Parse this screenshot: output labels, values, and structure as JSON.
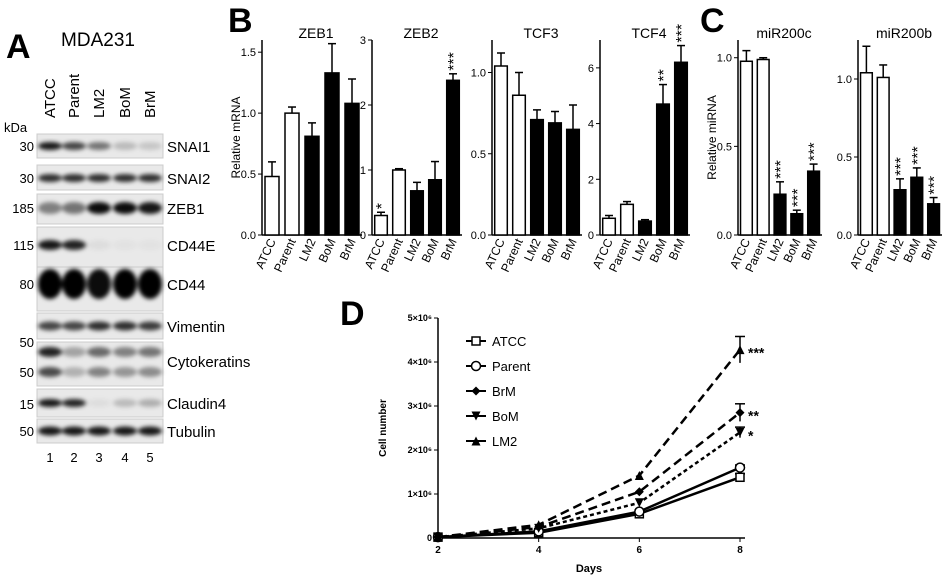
{
  "panel_labels": [
    "A",
    "B",
    "C",
    "D"
  ],
  "blot": {
    "cell_line": "MDA231",
    "kda_header": "kDa",
    "lanes": [
      "ATCC",
      "Parent",
      "LM2",
      "BoM",
      "BrM"
    ],
    "lane_numbers": [
      "1",
      "2",
      "3",
      "4",
      "5"
    ],
    "rows": [
      {
        "label": "SNAI1",
        "kda": [
          "30"
        ]
      },
      {
        "label": "SNAI2",
        "kda": [
          "30"
        ]
      },
      {
        "label": "ZEB1",
        "kda": [
          "185"
        ]
      },
      {
        "label": "CD44E",
        "kda": [
          "115"
        ]
      },
      {
        "label": "CD44",
        "kda": [
          "80"
        ]
      },
      {
        "label": "Vimentin",
        "kda": []
      },
      {
        "label": "Cytokeratins",
        "kda": [
          "50",
          "50"
        ]
      },
      {
        "label": "Claudin4",
        "kda": [
          "15"
        ]
      },
      {
        "label": "Tubulin",
        "kda": [
          "50"
        ]
      }
    ]
  },
  "chart_data": [
    {
      "type": "bar",
      "title": "ZEB1",
      "ylabel": "Relative mRNA",
      "categories": [
        "ATCC",
        "Parent",
        "LM2",
        "BoM",
        "BrM"
      ],
      "values": [
        0.48,
        1.0,
        0.81,
        1.33,
        1.08
      ],
      "errors": [
        0.12,
        0.05,
        0.11,
        0.24,
        0.2
      ],
      "colors": [
        "#ffffff",
        "#ffffff",
        "#000000",
        "#000000",
        "#000000"
      ],
      "annotations": [
        null,
        null,
        null,
        null,
        null
      ],
      "ylim": [
        0,
        1.6
      ],
      "yticks": [
        {
          "value": 0,
          "label": "0.0"
        },
        {
          "value": 0.5,
          "label": "0.5"
        },
        {
          "value": 1,
          "label": "1.0"
        },
        {
          "value": 1.5,
          "label": "1.5"
        }
      ]
    },
    {
      "type": "bar",
      "title": "ZEB2",
      "categories": [
        "ATCC",
        "Parent",
        "LM2",
        "BoM",
        "BrM"
      ],
      "values": [
        0.3,
        1.0,
        0.68,
        0.85,
        2.38
      ],
      "errors": [
        0.05,
        0.02,
        0.13,
        0.28,
        0.1
      ],
      "colors": [
        "#ffffff",
        "#ffffff",
        "#000000",
        "#000000",
        "#000000"
      ],
      "annotations": [
        "*",
        null,
        null,
        null,
        "***"
      ],
      "ylim": [
        0,
        3
      ],
      "yticks": [
        0,
        1,
        2,
        3
      ]
    },
    {
      "type": "bar",
      "title": "TCF3",
      "categories": [
        "ATCC",
        "Parent",
        "LM2",
        "BoM",
        "BrM"
      ],
      "values": [
        1.04,
        0.86,
        0.71,
        0.69,
        0.65
      ],
      "errors": [
        0.08,
        0.14,
        0.06,
        0.07,
        0.15
      ],
      "colors": [
        "#ffffff",
        "#ffffff",
        "#000000",
        "#000000",
        "#000000"
      ],
      "annotations": [
        null,
        null,
        null,
        null,
        null
      ],
      "ylim": [
        0,
        1.2
      ],
      "yticks": [
        {
          "value": 0,
          "label": "0.0"
        },
        {
          "value": 0.5,
          "label": "0.5"
        },
        {
          "value": 1,
          "label": "1.0"
        }
      ]
    },
    {
      "type": "bar",
      "title": "TCF4",
      "categories": [
        "ATCC",
        "Parent",
        "LM2",
        "BoM",
        "BrM"
      ],
      "values": [
        0.6,
        1.1,
        0.5,
        4.7,
        6.2
      ],
      "errors": [
        0.1,
        0.1,
        0.05,
        0.7,
        0.6
      ],
      "colors": [
        "#ffffff",
        "#ffffff",
        "#000000",
        "#000000",
        "#000000"
      ],
      "annotations": [
        null,
        null,
        null,
        "**",
        "***"
      ],
      "ylim": [
        0,
        7
      ],
      "yticks": [
        0,
        2,
        4,
        6
      ]
    },
    {
      "type": "bar",
      "title": "miR200c",
      "ylabel": "Relative miRNA",
      "categories": [
        "ATCC",
        "Parent",
        "LM2",
        "BoM",
        "BrM"
      ],
      "values": [
        0.98,
        0.99,
        0.23,
        0.12,
        0.36
      ],
      "errors": [
        0.06,
        0.01,
        0.07,
        0.02,
        0.04
      ],
      "colors": [
        "#ffffff",
        "#ffffff",
        "#000000",
        "#000000",
        "#000000"
      ],
      "annotations": [
        null,
        null,
        "***",
        "***",
        "***"
      ],
      "ylim": [
        0,
        1.1
      ],
      "yticks": [
        {
          "value": 0,
          "label": "0.0"
        },
        {
          "value": 0.5,
          "label": "0.5"
        },
        {
          "value": 1,
          "label": "1.0"
        }
      ]
    },
    {
      "type": "bar",
      "title": "miR200b",
      "categories": [
        "ATCC",
        "Parent",
        "LM2",
        "BoM",
        "BrM"
      ],
      "values": [
        1.04,
        1.01,
        0.29,
        0.37,
        0.2
      ],
      "errors": [
        0.17,
        0.08,
        0.07,
        0.06,
        0.04
      ],
      "colors": [
        "#ffffff",
        "#ffffff",
        "#000000",
        "#000000",
        "#000000"
      ],
      "annotations": [
        null,
        null,
        "***",
        "***",
        "***"
      ],
      "ylim": [
        0,
        1.25
      ],
      "yticks": [
        {
          "value": 0,
          "label": "0.0"
        },
        {
          "value": 0.5,
          "label": "0.5"
        },
        {
          "value": 1,
          "label": "1.0"
        }
      ]
    },
    {
      "type": "line",
      "xlabel": "Days",
      "ylabel": "Cell number",
      "x": [
        2,
        4,
        6,
        8
      ],
      "xlim": [
        2,
        8
      ],
      "xticks": [
        2,
        4,
        6,
        8
      ],
      "ylim": [
        0,
        5000000
      ],
      "yticks": [
        0,
        {
          "value": 1000000,
          "label": "1×10⁶"
        },
        {
          "value": 2000000,
          "label": "2×10⁶"
        },
        {
          "value": 3000000,
          "label": "3×10⁶"
        },
        {
          "value": 4000000,
          "label": "4×10⁶"
        },
        {
          "value": 5000000,
          "label": "5×10⁶"
        }
      ],
      "series": [
        {
          "name": "ATCC",
          "color": "#000000",
          "dash": "solid",
          "marker": "square",
          "values": [
            20000,
            120000,
            550000,
            1380000
          ],
          "errors": [
            null,
            null,
            null,
            80000
          ],
          "annotation": null
        },
        {
          "name": "Parent",
          "color": "#000000",
          "dash": "solid",
          "marker": "circle",
          "values": [
            20000,
            150000,
            600000,
            1600000
          ],
          "errors": [
            null,
            null,
            null,
            60000
          ],
          "annotation": null
        },
        {
          "name": "BrM",
          "color": "#000000",
          "dash": "dashed",
          "marker": "diamond",
          "values": [
            20000,
            250000,
            1050000,
            2850000
          ],
          "errors": [
            null,
            null,
            null,
            200000
          ],
          "annotation": "**"
        },
        {
          "name": "BoM",
          "color": "#000000",
          "dash": "dotted",
          "marker": "triangle-down",
          "values": [
            20000,
            220000,
            800000,
            2400000
          ],
          "errors": [
            null,
            null,
            null,
            120000
          ],
          "annotation": "*"
        },
        {
          "name": "LM2",
          "color": "#000000",
          "dash": "dashed",
          "marker": "triangle-up",
          "values": [
            20000,
            300000,
            1420000,
            4280000
          ],
          "errors": [
            null,
            null,
            null,
            300000
          ],
          "annotation": "***"
        }
      ]
    }
  ]
}
